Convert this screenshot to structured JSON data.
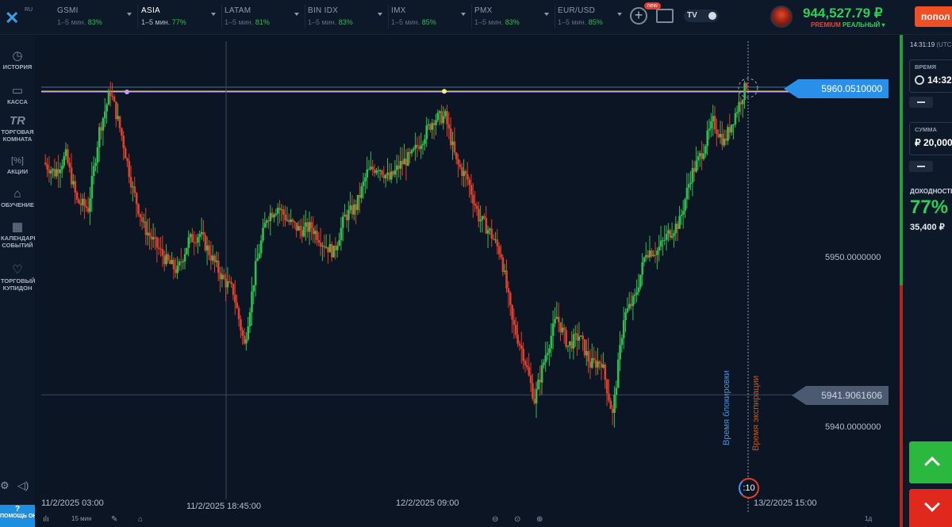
{
  "brand": {
    "suffix": "RU"
  },
  "assets": [
    {
      "name": "GSMI",
      "expiry": "1–5 мин.",
      "payout": "83%",
      "active": false
    },
    {
      "name": "ASIA",
      "expiry": "1–5 мин.",
      "payout": "77%",
      "active": true
    },
    {
      "name": "LATAM",
      "expiry": "1–5 мин.",
      "payout": "81%",
      "active": false
    },
    {
      "name": "BIN IDX",
      "expiry": "1–5 мин.",
      "payout": "83%",
      "active": false
    },
    {
      "name": "IMX",
      "expiry": "1–5 мин.",
      "payout": "85%",
      "active": false
    },
    {
      "name": "PMX",
      "expiry": "1–5 мин.",
      "payout": "83%",
      "active": false
    },
    {
      "name": "EUR/USD",
      "expiry": "1–5 мин.",
      "payout": "85%",
      "active": false
    }
  ],
  "toolbar": {
    "new_badge": "new",
    "tv_label": "TV"
  },
  "account": {
    "balance": "944,527.79 ₽",
    "tier": "PREMIUM",
    "type": "РЕАЛЬНЫЙ",
    "deposit_label": "попол"
  },
  "sidebar": {
    "items": [
      {
        "icon": "history-icon",
        "label": "ИСТОРИЯ"
      },
      {
        "icon": "wallet-icon",
        "label": "КАССА"
      },
      {
        "icon": "trading-room-icon",
        "label": "ТОРГОВАЯ КОМНАТА"
      },
      {
        "icon": "promo-icon",
        "label": "АКЦИИ"
      },
      {
        "icon": "education-icon",
        "label": "ОБУЧЕНИЕ"
      },
      {
        "icon": "calendar-icon",
        "label": "КАЛЕНДАРЬ СОБЫТИЙ"
      },
      {
        "icon": "cupid-icon",
        "label": "ТОРГОВЫЙ КУПИДОН"
      }
    ],
    "help": {
      "mark": "?",
      "label": "ПОМОЩЬ ОНЛАЙН"
    }
  },
  "chart": {
    "current_price": "5960.0510000",
    "cursor_price": "5941.9061606",
    "axis_prices": [
      "5950.0000000",
      "5940.0000000"
    ],
    "dates": [
      "11/2/2025 03:00",
      "11/2/2025 18:45:00",
      "12/2/2025 09:00",
      "13/2/2025 15:00"
    ],
    "lock_time_label": "Время блокировки",
    "expiry_time_label": "Время экспирации",
    "timer": ":10"
  },
  "bottom_tools": {
    "timeframe": "15 мин",
    "counter": "1д"
  },
  "right_panel": {
    "server_time": "14:31:19",
    "tz": "(UTC",
    "time_caption": "ВРЕМЯ",
    "time_value": "14:32",
    "amount_caption": "СУММА",
    "amount_value": "₽ 20,000",
    "profit_caption": "ДОХОДНОСТЬ",
    "profit_pct": "77%",
    "profit_amount": "35,400 ₽"
  },
  "colors": {
    "background": "#0b1524",
    "up": "#2fbf4f",
    "down": "#e0402a",
    "accent": "#1e8fe0",
    "level_line": "#c8d23c"
  },
  "chart_data": {
    "type": "candlestick",
    "x_labels": [
      "11/2/2025 03:00",
      "11/2/2025 18:45:00",
      "12/2/2025 09:00",
      "13/2/2025 15:00"
    ],
    "y_ticks": [
      5950.0,
      5940.0
    ],
    "current_price": 5960.051,
    "cursor_price": 5941.9061606,
    "high_level": 5959.8,
    "close_path": [
      5955.6,
      5955.0,
      5956.0,
      5953.3,
      5952.9,
      5957.5,
      5959.8,
      5957.2,
      5954.0,
      5951.8,
      5950.8,
      5949.8,
      5949.2,
      5951.0,
      5951.4,
      5950.1,
      5948.8,
      5948.0,
      5944.8,
      5949.4,
      5952.4,
      5953.0,
      5952.1,
      5951.6,
      5951.8,
      5950.9,
      5950.3,
      5952.4,
      5953.0,
      5955.0,
      5955.4,
      5954.6,
      5955.5,
      5956.0,
      5957.1,
      5958.2,
      5958.3,
      5955.6,
      5954.6,
      5952.4,
      5951.5,
      5950.2,
      5946.2,
      5944.3,
      5941.6,
      5944.3,
      5946.5,
      5944.8,
      5945.4,
      5943.7,
      5943.9,
      5940.7,
      5946.5,
      5947.6,
      5950.4,
      5950.4,
      5951.4,
      5952.1,
      5954.8,
      5956.2,
      5958.0,
      5956.8,
      5958.5,
      5960.2
    ]
  }
}
